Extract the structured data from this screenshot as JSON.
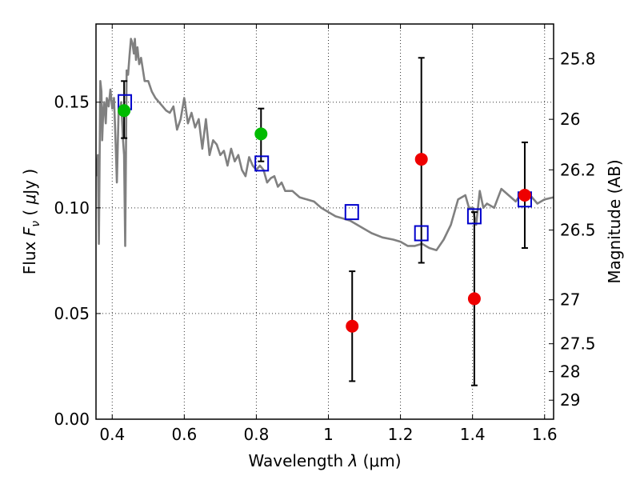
{
  "chart_data": {
    "type": "scatter",
    "xlabel": "Wavelength  λ (μm)",
    "ylabel": "Flux  F_ν ( μJy )",
    "ylabel_right": "Magnitude (AB)",
    "xlim": [
      0.355,
      1.625
    ],
    "ylim": [
      0.0,
      0.187
    ],
    "x_ticks": [
      0.4,
      0.6,
      0.8,
      1.0,
      1.2,
      1.4,
      1.6
    ],
    "x_tick_labels": [
      "0.4",
      "0.6",
      "0.8",
      "1",
      "1.2",
      "1.4",
      "1.6"
    ],
    "y_ticks": [
      0.0,
      0.05,
      0.1,
      0.15
    ],
    "y_tick_labels": [
      "0.00",
      "0.05",
      "0.10",
      "0.15"
    ],
    "right_ticks": [
      {
        "label": "25.8",
        "flux": 0.1706
      },
      {
        "label": "26",
        "flux": 0.1419
      },
      {
        "label": "26.2",
        "flux": 0.118
      },
      {
        "label": "26.5",
        "flux": 0.0895
      },
      {
        "label": "27",
        "flux": 0.0565
      },
      {
        "label": "27.5",
        "flux": 0.0357
      },
      {
        "label": "28",
        "flux": 0.0225
      },
      {
        "label": "29",
        "flux": 0.009
      }
    ],
    "grid": true,
    "colors": {
      "model": "#808080",
      "detection": "#00bb00",
      "measurement": "#ee0000",
      "model_box": "#0000cc",
      "error_bar": "#000000"
    },
    "series": [
      {
        "kind": "line",
        "x": [
          0.355,
          0.36,
          0.363,
          0.367,
          0.37,
          0.372,
          0.375,
          0.378,
          0.382,
          0.385,
          0.39,
          0.395,
          0.4,
          0.405,
          0.41,
          0.413,
          0.418,
          0.42,
          0.425,
          0.43,
          0.433,
          0.436,
          0.44,
          0.444,
          0.448,
          0.452,
          0.456,
          0.46,
          0.463,
          0.466,
          0.47,
          0.475,
          0.48,
          0.49,
          0.5,
          0.51,
          0.52,
          0.53,
          0.54,
          0.55,
          0.56,
          0.57,
          0.58,
          0.59,
          0.6,
          0.61,
          0.62,
          0.63,
          0.64,
          0.65,
          0.66,
          0.67,
          0.68,
          0.69,
          0.7,
          0.71,
          0.72,
          0.73,
          0.74,
          0.75,
          0.76,
          0.77,
          0.78,
          0.79,
          0.8,
          0.81,
          0.82,
          0.83,
          0.84,
          0.85,
          0.86,
          0.87,
          0.88,
          0.9,
          0.92,
          0.94,
          0.96,
          0.98,
          1.0,
          1.02,
          1.04,
          1.06,
          1.08,
          1.1,
          1.12,
          1.15,
          1.18,
          1.2,
          1.22,
          1.24,
          1.26,
          1.28,
          1.3,
          1.32,
          1.34,
          1.36,
          1.38,
          1.39,
          1.4,
          1.41,
          1.42,
          1.43,
          1.44,
          1.46,
          1.48,
          1.5,
          1.52,
          1.54,
          1.56,
          1.58,
          1.6,
          1.625
        ],
        "y": [
          0.115,
          0.125,
          0.083,
          0.16,
          0.155,
          0.132,
          0.145,
          0.15,
          0.14,
          0.152,
          0.148,
          0.156,
          0.147,
          0.152,
          0.128,
          0.112,
          0.148,
          0.145,
          0.15,
          0.132,
          0.125,
          0.082,
          0.165,
          0.163,
          0.172,
          0.18,
          0.178,
          0.173,
          0.18,
          0.17,
          0.176,
          0.168,
          0.171,
          0.16,
          0.16,
          0.155,
          0.152,
          0.15,
          0.148,
          0.146,
          0.145,
          0.148,
          0.137,
          0.142,
          0.152,
          0.14,
          0.145,
          0.138,
          0.142,
          0.128,
          0.142,
          0.125,
          0.132,
          0.13,
          0.125,
          0.127,
          0.12,
          0.128,
          0.122,
          0.125,
          0.118,
          0.115,
          0.124,
          0.12,
          0.118,
          0.12,
          0.118,
          0.112,
          0.114,
          0.115,
          0.11,
          0.112,
          0.108,
          0.108,
          0.105,
          0.104,
          0.103,
          0.1,
          0.098,
          0.096,
          0.095,
          0.094,
          0.092,
          0.09,
          0.088,
          0.086,
          0.085,
          0.084,
          0.082,
          0.082,
          0.083,
          0.081,
          0.08,
          0.085,
          0.092,
          0.104,
          0.106,
          0.1,
          0.1,
          0.092,
          0.108,
          0.1,
          0.102,
          0.1,
          0.109,
          0.106,
          0.103,
          0.108,
          0.106,
          0.102,
          0.104,
          0.105
        ]
      },
      {
        "kind": "points",
        "color_key": "model_box",
        "marker": "square",
        "x": [
          0.435,
          0.815,
          1.065,
          1.258,
          1.405,
          1.545
        ],
        "y": [
          0.15,
          0.121,
          0.098,
          0.088,
          0.096,
          0.104
        ]
      },
      {
        "kind": "points",
        "color_key": "detection",
        "marker": "circle",
        "x": [
          0.433,
          0.813
        ],
        "y": [
          0.146,
          0.135
        ],
        "err": [
          [
            0.133,
            0.16
          ],
          [
            0.122,
            0.147
          ]
        ]
      },
      {
        "kind": "points",
        "color_key": "measurement",
        "marker": "circle",
        "x": [
          1.066,
          1.258,
          1.405,
          1.545
        ],
        "y": [
          0.044,
          0.123,
          0.057,
          0.106
        ],
        "err": [
          [
            0.018,
            0.07
          ],
          [
            0.074,
            0.171
          ],
          [
            0.016,
            0.098
          ],
          [
            0.081,
            0.131
          ]
        ]
      }
    ]
  }
}
